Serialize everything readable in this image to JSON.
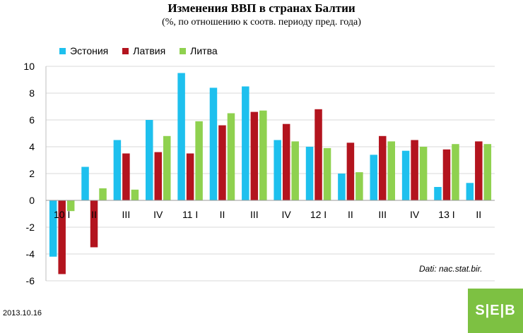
{
  "chart_data": {
    "type": "bar",
    "title": "Изменения ВВП в странах Балтии",
    "subtitle": "(%, по отношению к соотв. периоду пред. года)",
    "categories": [
      "10 I",
      "II",
      "III",
      "IV",
      "11 I",
      "II",
      "III",
      "IV",
      "12 I",
      "II",
      "III",
      "IV",
      "13 I",
      "II"
    ],
    "series": [
      {
        "name": "Эстония",
        "color": "#1ec0ee",
        "values": [
          -4.2,
          2.5,
          4.5,
          6.0,
          9.5,
          8.4,
          8.5,
          4.5,
          4.0,
          2.0,
          3.4,
          3.7,
          1.0,
          1.3
        ]
      },
      {
        "name": "Латвия",
        "color": "#b3141e",
        "values": [
          -5.5,
          -3.5,
          3.5,
          3.6,
          3.5,
          5.6,
          6.6,
          5.7,
          6.8,
          4.3,
          4.8,
          4.5,
          3.8,
          4.4
        ]
      },
      {
        "name": "Литва",
        "color": "#8fd14f",
        "values": [
          -0.8,
          0.9,
          0.8,
          4.8,
          5.9,
          6.5,
          6.7,
          4.4,
          3.9,
          2.1,
          4.4,
          4.0,
          4.2,
          4.2
        ]
      }
    ],
    "ylim": [
      -6,
      10
    ],
    "yticks": [
      -6,
      -4,
      -2,
      0,
      2,
      4,
      6,
      8,
      10
    ],
    "grid": true,
    "legend": "top-left",
    "source": "Dati: nac.stat.bir."
  },
  "footer": {
    "date": "2013.10.16",
    "logo_text": "S|E|B"
  }
}
